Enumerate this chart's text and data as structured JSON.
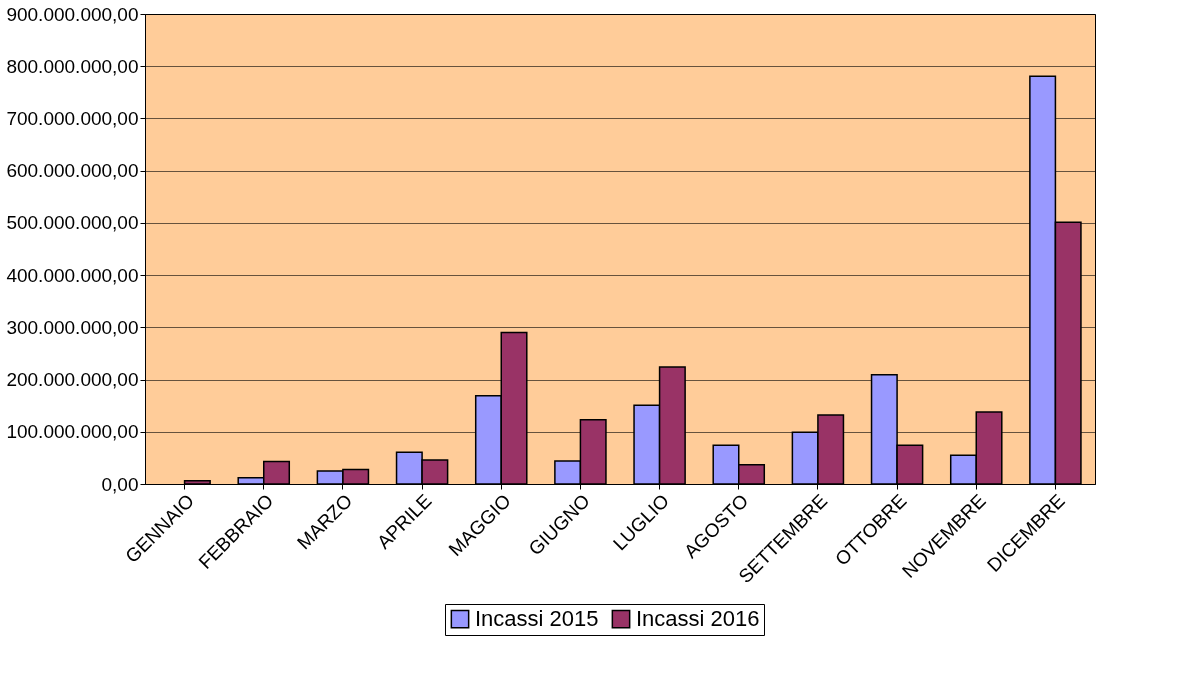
{
  "chart_data": {
    "type": "bar",
    "categories": [
      "GENNAIO",
      "FEBBRAIO",
      "MARZO",
      "APRILE",
      "MAGGIO",
      "GIUGNO",
      "LUGLIO",
      "AGOSTO",
      "SETTEMBRE",
      "OTTOBRE",
      "NOVEMBRE",
      "DICEMBRE"
    ],
    "series": [
      {
        "name": "Incassi 2015",
        "color": "#9999ff",
        "values": [
          null,
          12000000,
          25000000,
          61000000,
          169000000,
          44000000,
          151000000,
          74000000,
          99000000,
          209000000,
          55000000,
          781000000
        ]
      },
      {
        "name": "Incassi 2016",
        "color": "#993366",
        "values": [
          6000000,
          43000000,
          28000000,
          46000000,
          290000000,
          123000000,
          224000000,
          37000000,
          132000000,
          74000000,
          138000000,
          501000000
        ]
      }
    ],
    "ylim": [
      0,
      900000000
    ],
    "yticks": [
      {
        "value": 0,
        "label": "0,00"
      },
      {
        "value": 100000000,
        "label": "100.000.000,00"
      },
      {
        "value": 200000000,
        "label": "200.000.000,00"
      },
      {
        "value": 300000000,
        "label": "300.000.000,00"
      },
      {
        "value": 400000000,
        "label": "400.000.000,00"
      },
      {
        "value": 500000000,
        "label": "500.000.000,00"
      },
      {
        "value": 600000000,
        "label": "600.000.000,00"
      },
      {
        "value": 700000000,
        "label": "700.000.000,00"
      },
      {
        "value": 800000000,
        "label": "800.000.000,00"
      },
      {
        "value": 900000000,
        "label": "900.000.000,00"
      }
    ],
    "grid": "y",
    "legend": "bottom"
  }
}
